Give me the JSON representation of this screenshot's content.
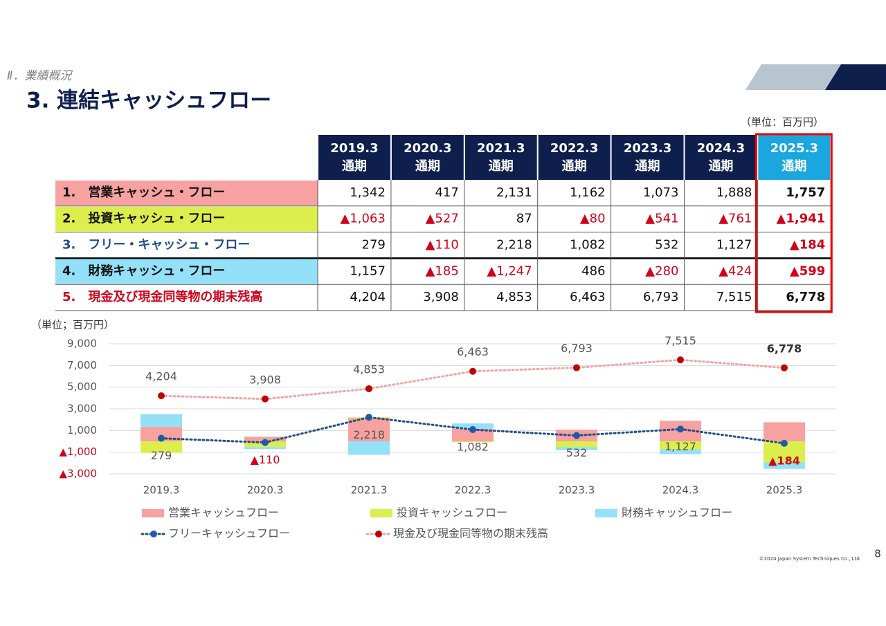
{
  "header": {
    "section": "Ⅱ．業績概況",
    "title": "3. 連結キャッシュフロー",
    "unit": "（単位：百万円）"
  },
  "table": {
    "columns": [
      {
        "year": "2019.3",
        "period": "通期"
      },
      {
        "year": "2020.3",
        "period": "通期"
      },
      {
        "year": "2021.3",
        "period": "通期"
      },
      {
        "year": "2022.3",
        "period": "通期"
      },
      {
        "year": "2023.3",
        "period": "通期"
      },
      {
        "year": "2024.3",
        "period": "通期"
      },
      {
        "year": "2025.3",
        "period": "通期"
      }
    ],
    "rows": [
      {
        "label": "1.　営業キャッシュ・フロー",
        "fill": "#f7a1a1",
        "cells": [
          "1,342",
          "417",
          "2,131",
          "1,162",
          "1,073",
          "1,888",
          "1,757"
        ]
      },
      {
        "label": "2.　投資キャッシュ・フロー",
        "fill": "#dbee4c",
        "cells": [
          "▲1,063",
          "▲527",
          "87",
          "▲80",
          "▲541",
          "▲761",
          "▲1,941"
        ]
      },
      {
        "label": "3.　フリー・キャッシュ・フロー",
        "text_color": "#1f4e8c",
        "cells": [
          "279",
          "▲110",
          "2,218",
          "1,082",
          "532",
          "1,127",
          "▲184"
        ]
      },
      {
        "label": "4.　財務キャッシュ・フロー",
        "fill": "#93e1f8",
        "cells": [
          "1,157",
          "▲185",
          "▲1,247",
          "486",
          "▲280",
          "▲424",
          "▲599"
        ]
      },
      {
        "label": "5.　現金及び現金同等物の期末残高",
        "text_color": "#d0021b",
        "cells": [
          "4,204",
          "3,908",
          "4,853",
          "6,463",
          "6,793",
          "7,515",
          "6,778"
        ]
      }
    ]
  },
  "chart_data": {
    "type": "combo",
    "unit": "（単位；百万円）",
    "categories": [
      "2019.3",
      "2020.3",
      "2021.3",
      "2022.3",
      "2023.3",
      "2024.3",
      "2025.3"
    ],
    "ylim": [
      -3000,
      9000
    ],
    "yticks": [
      {
        "value": 9000,
        "label": "9,000"
      },
      {
        "value": 7000,
        "label": "7,000"
      },
      {
        "value": 5000,
        "label": "5,000"
      },
      {
        "value": 3000,
        "label": "3,000"
      },
      {
        "value": 1000,
        "label": "1,000"
      },
      {
        "value": -1000,
        "label": "▲1,000"
      },
      {
        "value": -3000,
        "label": "▲3,000"
      }
    ],
    "grid": true,
    "series": [
      {
        "name": "営業キャッシュフロー",
        "type": "bar",
        "color": "#f7a1a1",
        "values": [
          1342,
          417,
          2131,
          1162,
          1073,
          1888,
          1757
        ]
      },
      {
        "name": "投資キャッシュフロー",
        "type": "bar",
        "color": "#dbee4c",
        "values": [
          -1063,
          -527,
          87,
          -80,
          -541,
          -761,
          -1941
        ]
      },
      {
        "name": "財務キャッシュフロー",
        "type": "bar",
        "color": "#93e1f8",
        "values": [
          1157,
          -185,
          -1247,
          486,
          -280,
          -424,
          -599
        ]
      },
      {
        "name": "フリーキャッシュフロー",
        "type": "line",
        "color": "#1f4e8c",
        "marker_color": "#1f5aa6",
        "values": [
          279,
          -110,
          2218,
          1082,
          532,
          1127,
          -184
        ],
        "value_labels": [
          "279",
          "▲110",
          "2,218",
          "1,082",
          "532",
          "1,127",
          "▲184"
        ]
      },
      {
        "name": "現金及び現金同等物の期末残高",
        "type": "line",
        "color": "#f4a3a3",
        "marker_color": "#c00000",
        "values": [
          4204,
          3908,
          4853,
          6463,
          6793,
          7515,
          6778
        ],
        "value_labels": [
          "4,204",
          "3,908",
          "4,853",
          "6,463",
          "6,793",
          "7,515",
          "6,778"
        ]
      }
    ]
  },
  "footer": {
    "copyright": "©2024 Japan System Techniques Co., Ltd.",
    "page": "8"
  }
}
